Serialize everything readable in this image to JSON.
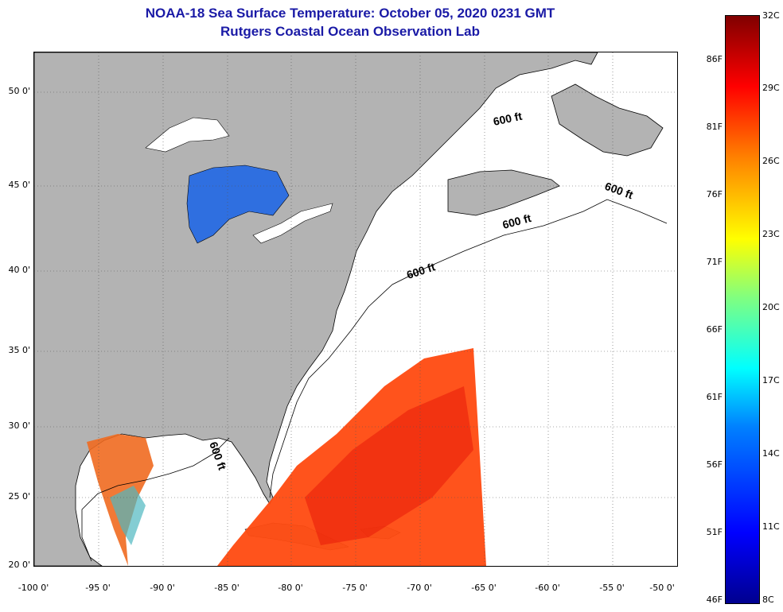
{
  "header": {
    "title_line1": "NOAA-18 Sea Surface Temperature:  October 05, 2020 0231 GMT",
    "title_line2": "Rutgers Coastal Ocean Observation Lab"
  },
  "map": {
    "lat_ticks": [
      "50 0'",
      "45 0'",
      "40 0'",
      "35 0'",
      "30 0'",
      "25 0'",
      "20 0'"
    ],
    "lon_ticks": [
      "-100 0'",
      "-95 0'",
      "-90 0'",
      "-85 0'",
      "-80 0'",
      "-75 0'",
      "-70 0'",
      "-65 0'",
      "-60 0'",
      "-55 0'",
      "-50 0'"
    ],
    "isobath_labels": [
      "600 ft",
      "600 ft",
      "600 ft",
      "600 ft",
      "600 ft"
    ],
    "colors": {
      "land": "#b3b3b3",
      "ocean_missing": "#ffffff",
      "coast": "#000000",
      "grid": "#555555"
    }
  },
  "colorbar": {
    "fahrenheit_labels": [
      "86F",
      "81F",
      "76F",
      "71F",
      "66F",
      "61F",
      "56F",
      "51F",
      "46F"
    ],
    "celsius_labels": [
      "32C",
      "29C",
      "26C",
      "23C",
      "20C",
      "17C",
      "14C",
      "11C",
      "8C"
    ]
  }
}
